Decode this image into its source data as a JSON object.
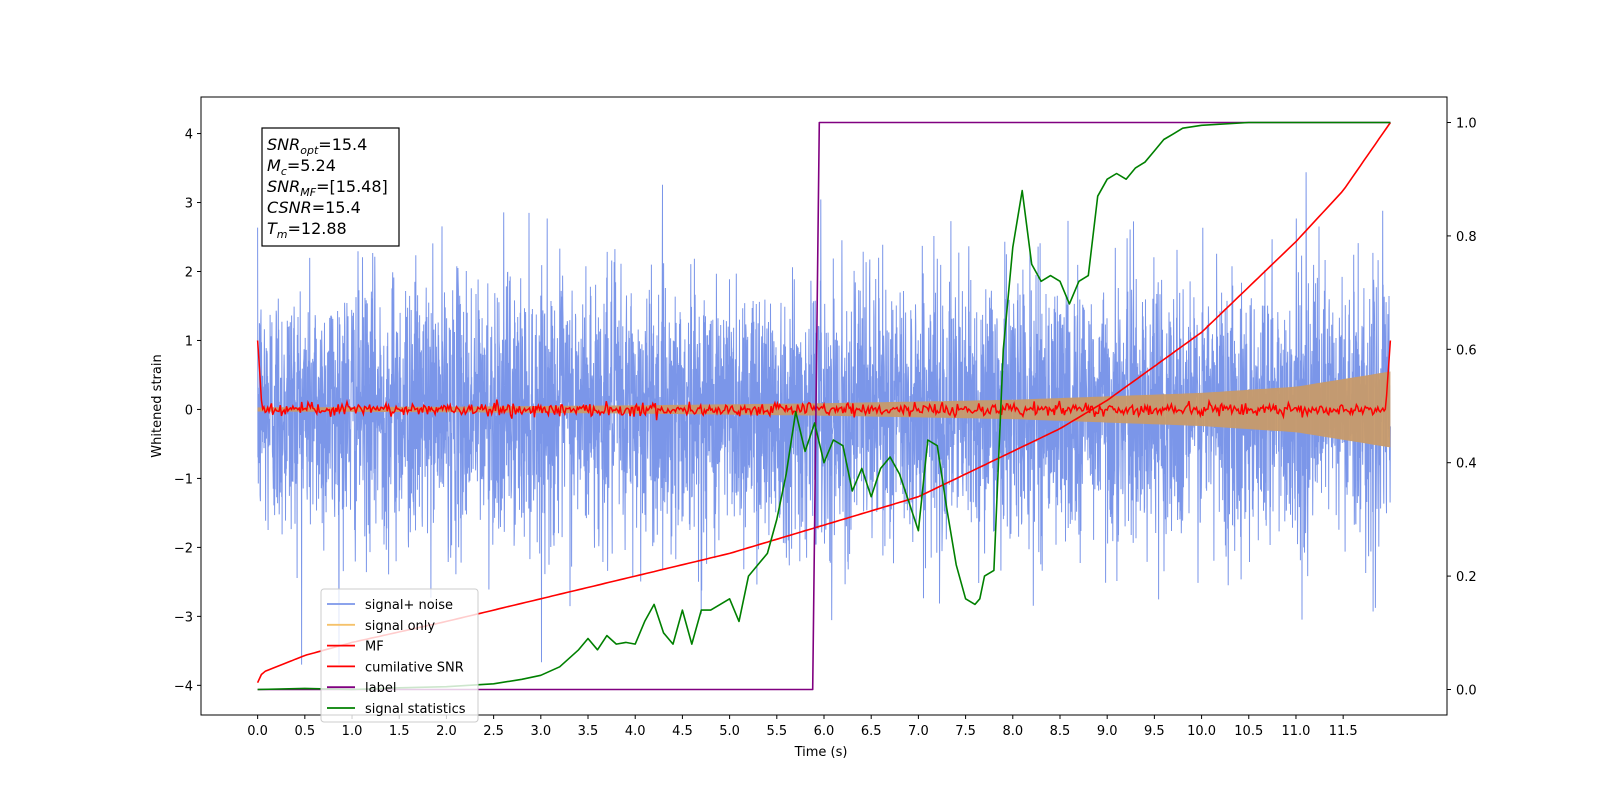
{
  "chart_data": {
    "type": "line",
    "xlabel": "Time (s)",
    "ylabel": "Whitened strain",
    "xlim": [
      -0.6,
      12.6
    ],
    "ylim": [
      -4.43,
      4.53
    ],
    "y2lim": [
      -0.045,
      1.045
    ],
    "x_ticks": [
      0.0,
      0.5,
      1.0,
      1.5,
      2.0,
      2.5,
      3.0,
      3.5,
      4.0,
      4.5,
      5.0,
      5.5,
      6.0,
      6.5,
      7.0,
      7.5,
      8.0,
      8.5,
      9.0,
      9.5,
      10.0,
      10.5,
      11.0,
      11.5
    ],
    "x_tick_labels": [
      "0.0",
      "0.5",
      "1.0",
      "1.5",
      "2.0",
      "2.5",
      "3.0",
      "3.5",
      "4.0",
      "4.5",
      "5.0",
      "5.5",
      "6.0",
      "6.5",
      "7.0",
      "7.5",
      "8.0",
      "8.5",
      "9.0",
      "9.5",
      "10.0",
      "10.5",
      "11.0",
      "11.5"
    ],
    "y_ticks": [
      -4,
      -3,
      -2,
      -1,
      0,
      1,
      2,
      3,
      4
    ],
    "y_tick_labels": [
      "−4",
      "−3",
      "−2",
      "−1",
      "0",
      "1",
      "2",
      "3",
      "4"
    ],
    "y2_ticks": [
      0.0,
      0.2,
      0.4,
      0.6,
      0.8,
      1.0
    ],
    "y2_tick_labels": [
      "0.0",
      "0.2",
      "0.4",
      "0.6",
      "0.8",
      "1.0"
    ],
    "grid": false,
    "legend_position": "lower-left",
    "annotation": [
      {
        "main": "SNR",
        "sub": "opt",
        "value": "=15.4"
      },
      {
        "main": "M",
        "sub": "c",
        "value": "=5.24"
      },
      {
        "main": "SNR",
        "sub": "MF",
        "value": "=[15.48]"
      },
      {
        "main": "CSNR",
        "sub": "",
        "value": "=15.4"
      },
      {
        "main": "T",
        "sub": "m",
        "value": "=12.88"
      }
    ],
    "series": [
      {
        "name": "signal+ noise",
        "color": "#7b96e9",
        "axis": "left",
        "x_range": [
          0.0,
          12.0
        ],
        "envelope_typical": 1.6,
        "envelope_peaks": 3.7
      },
      {
        "name": "signal only",
        "color": "#f5c26b",
        "axis": "left",
        "x_range": [
          0.0,
          12.0
        ],
        "envelope": {
          "x": [
            0,
            2,
            4,
            6,
            8,
            10,
            11,
            12
          ],
          "amplitude": [
            0.03,
            0.04,
            0.06,
            0.09,
            0.14,
            0.24,
            0.33,
            0.55
          ]
        }
      },
      {
        "name": "MF",
        "color": "#ff0000",
        "axis": "left",
        "x_range": [
          0.0,
          12.0
        ],
        "start_value": 1.0,
        "end_value": 1.0,
        "noise_amplitude": 0.08
      },
      {
        "name": "cumilative SNR",
        "color": "#ff0000",
        "axis": "right",
        "x": [
          0.0,
          0.05,
          0.5,
          1.0,
          2.0,
          3.0,
          4.0,
          5.0,
          6.0,
          7.0,
          8.0,
          8.5,
          9.0,
          9.5,
          10.0,
          10.5,
          11.0,
          11.5,
          12.0
        ],
        "y": [
          0.012,
          0.03,
          0.06,
          0.083,
          0.12,
          0.16,
          0.2,
          0.24,
          0.29,
          0.34,
          0.42,
          0.46,
          0.51,
          0.57,
          0.63,
          0.71,
          0.79,
          0.88,
          1.0
        ]
      },
      {
        "name": "label",
        "color": "#800080",
        "axis": "right",
        "x": [
          0.0,
          5.88,
          5.95,
          12.0
        ],
        "y": [
          0.0,
          0.0,
          1.0,
          1.0
        ]
      },
      {
        "name": "signal statistics",
        "color": "#008000",
        "axis": "right",
        "x": [
          0.0,
          0.5,
          1.0,
          1.5,
          2.0,
          2.5,
          2.8,
          3.0,
          3.2,
          3.4,
          3.5,
          3.6,
          3.7,
          3.8,
          3.9,
          4.0,
          4.1,
          4.2,
          4.3,
          4.4,
          4.5,
          4.6,
          4.7,
          4.8,
          4.9,
          5.0,
          5.1,
          5.2,
          5.3,
          5.4,
          5.5,
          5.6,
          5.7,
          5.8,
          5.9,
          6.0,
          6.1,
          6.2,
          6.3,
          6.4,
          6.5,
          6.6,
          6.7,
          6.8,
          6.9,
          7.0,
          7.1,
          7.2,
          7.3,
          7.4,
          7.5,
          7.6,
          7.65,
          7.7,
          7.8,
          7.9,
          8.0,
          8.1,
          8.2,
          8.3,
          8.4,
          8.5,
          8.6,
          8.7,
          8.8,
          8.9,
          9.0,
          9.1,
          9.2,
          9.3,
          9.4,
          9.5,
          9.6,
          9.7,
          9.8,
          10.0,
          10.5,
          11.0,
          12.0
        ],
        "y": [
          0.0,
          0.002,
          0.0,
          0.003,
          0.005,
          0.01,
          0.018,
          0.025,
          0.04,
          0.07,
          0.09,
          0.07,
          0.095,
          0.08,
          0.083,
          0.08,
          0.12,
          0.15,
          0.1,
          0.08,
          0.14,
          0.08,
          0.14,
          0.14,
          0.15,
          0.16,
          0.12,
          0.2,
          0.22,
          0.24,
          0.3,
          0.38,
          0.49,
          0.42,
          0.47,
          0.4,
          0.44,
          0.43,
          0.35,
          0.39,
          0.34,
          0.39,
          0.41,
          0.38,
          0.33,
          0.28,
          0.44,
          0.43,
          0.32,
          0.22,
          0.16,
          0.15,
          0.16,
          0.2,
          0.21,
          0.6,
          0.78,
          0.88,
          0.75,
          0.72,
          0.73,
          0.72,
          0.68,
          0.72,
          0.73,
          0.87,
          0.9,
          0.91,
          0.9,
          0.92,
          0.93,
          0.95,
          0.97,
          0.98,
          0.99,
          0.995,
          1.0,
          1.0,
          1.0
        ]
      }
    ]
  }
}
